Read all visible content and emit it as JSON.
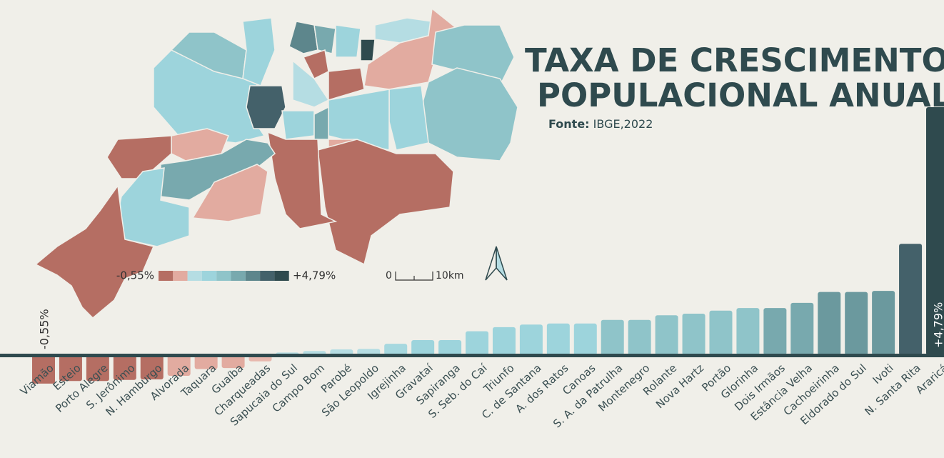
{
  "chart_data": {
    "type": "bar",
    "title": [
      "TAXA DE CRESCIMENTO",
      "POPULACIONAL ANUAL"
    ],
    "source": {
      "label": "Fonte:",
      "text": "IBGE,2022"
    },
    "legend": {
      "min_label": "-0,55%",
      "max_label": "+4,79%",
      "colors": [
        "#b56e63",
        "#e2aba0",
        "#b5dde3",
        "#9dd4dc",
        "#8fc4c9",
        "#78a9ae",
        "#5d868c",
        "#44616a",
        "#2f4a4e"
      ]
    },
    "scalebar": [
      "0",
      "10km"
    ],
    "categories": [
      "Viamão",
      "Esteio",
      "Porto Alegre",
      "S. Jerônimo",
      "N. Hamburgo",
      "Alvorada",
      "Taquara",
      "Guaíba",
      "Charqueadas",
      "Sapucaia do Sul",
      "Campo Bom",
      "Parobé",
      "São Leopoldo",
      "Igrejinha",
      "Gravataí",
      "Sapiranga",
      "S. Seb. do Caí",
      "Triunfo",
      "C. de Santana",
      "A. dos Ratos",
      "Canoas",
      "S. A. da Patrulha",
      "Montenegro",
      "Rolante",
      "Nova Hartz",
      "Portão",
      "Glorinha",
      "Dois Irmãos",
      "Estância Velha",
      "Cachoeirinha",
      "Eldorado do Sul",
      "Ivoti",
      "N. Santa Rita",
      "Araricá"
    ],
    "values": [
      -0.55,
      -0.5,
      -0.5,
      -0.48,
      -0.47,
      -0.4,
      -0.27,
      -0.25,
      -0.12,
      0.05,
      0.08,
      0.11,
      0.12,
      0.22,
      0.29,
      0.29,
      0.46,
      0.54,
      0.59,
      0.61,
      0.61,
      0.68,
      0.68,
      0.77,
      0.8,
      0.86,
      0.91,
      0.91,
      1.01,
      1.22,
      1.22,
      1.24,
      2.15,
      4.79
    ],
    "value_labels": [
      "-0,55%",
      null,
      null,
      null,
      null,
      null,
      null,
      null,
      null,
      null,
      null,
      null,
      null,
      null,
      null,
      null,
      null,
      null,
      null,
      null,
      null,
      null,
      null,
      null,
      null,
      null,
      null,
      null,
      null,
      null,
      null,
      null,
      null,
      "+4,79%"
    ],
    "colors": [
      "#b56e63",
      "#b56e63",
      "#b56e63",
      "#b56e63",
      "#b56e63",
      "#e2aba0",
      "#e2aba0",
      "#e2aba0",
      "#e8b8ae",
      "#b5dde3",
      "#b5dde3",
      "#b5dde3",
      "#b5dde3",
      "#a6d8df",
      "#9dd4dc",
      "#9dd4dc",
      "#9dd4dc",
      "#9dd4dc",
      "#9dd4dc",
      "#9dd4dc",
      "#9dd4dc",
      "#8fc4c9",
      "#8fc4c9",
      "#8fc4c9",
      "#8fc4c9",
      "#8fc4c9",
      "#8fc4c9",
      "#78a9ae",
      "#78a9ae",
      "#6b999e",
      "#6b999e",
      "#6b999e",
      "#44616a",
      "#2f4a4e"
    ]
  }
}
